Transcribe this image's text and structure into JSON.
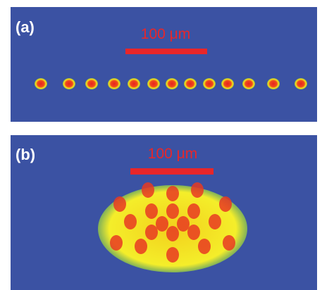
{
  "panels": [
    {
      "label": "(a)",
      "scale_bar": "100 μm"
    },
    {
      "label": "(b)",
      "scale_bar": "100 μm"
    }
  ]
}
